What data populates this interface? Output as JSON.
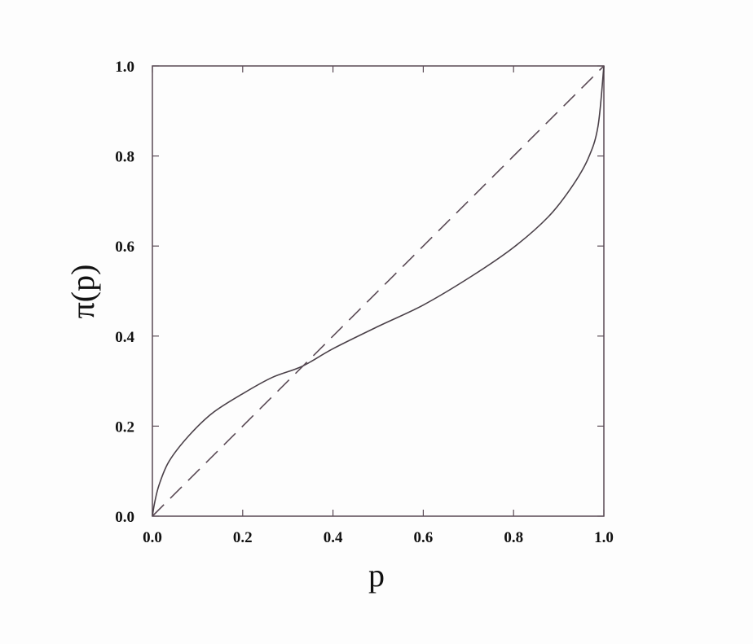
{
  "chart_data": {
    "type": "line",
    "title": "",
    "xlabel": "p",
    "ylabel": "π(p)",
    "xlim": [
      0,
      1
    ],
    "ylim": [
      0,
      1
    ],
    "xticks": [
      "0.0",
      "0.2",
      "0.4",
      "0.6",
      "0.8",
      "1.0"
    ],
    "yticks": [
      "0.0",
      "0.2",
      "0.4",
      "0.6",
      "0.8",
      "1.0"
    ],
    "grid": false,
    "series": [
      {
        "style": "solid",
        "color": "#4a4048",
        "x": [
          0,
          0.005,
          0.015,
          0.037,
          0.081,
          0.133,
          0.2,
          0.265,
          0.332,
          0.4,
          0.501,
          0.6,
          0.707,
          0.8,
          0.877,
          0.928,
          0.965,
          0.987,
          1.0
        ],
        "y": [
          0,
          0.03,
          0.07,
          0.122,
          0.179,
          0.229,
          0.272,
          0.308,
          0.333,
          0.372,
          0.422,
          0.469,
          0.533,
          0.597,
          0.665,
          0.73,
          0.794,
          0.866,
          1.0
        ]
      },
      {
        "style": "dashed",
        "color": "#5a4a55",
        "x": [
          0,
          1
        ],
        "y": [
          0,
          1
        ]
      }
    ]
  }
}
